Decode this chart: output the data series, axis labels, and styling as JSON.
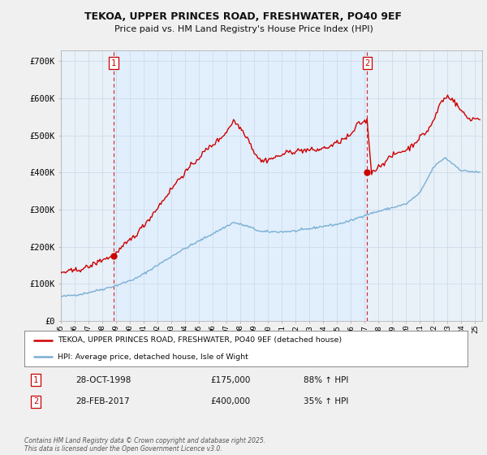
{
  "title_line1": "TEKOA, UPPER PRINCES ROAD, FRESHWATER, PO40 9EF",
  "title_line2": "Price paid vs. HM Land Registry's House Price Index (HPI)",
  "xlim_start": 1995.0,
  "xlim_end": 2025.5,
  "ylim": [
    0,
    730000
  ],
  "yticks": [
    0,
    100000,
    200000,
    300000,
    400000,
    500000,
    600000,
    700000
  ],
  "ytick_labels": [
    "£0",
    "£100K",
    "£200K",
    "£300K",
    "£400K",
    "£500K",
    "£600K",
    "£700K"
  ],
  "red_color": "#cc0000",
  "blue_color": "#7aafd4",
  "vline_color": "#cc0000",
  "shading_color": "#ddeeff",
  "marker1_x": 1998.83,
  "marker1_y": 175000,
  "marker2_x": 2017.17,
  "marker2_y": 400000,
  "legend_label_red": "TEKOA, UPPER PRINCES ROAD, FRESHWATER, PO40 9EF (detached house)",
  "legend_label_blue": "HPI: Average price, detached house, Isle of Wight",
  "annotation1_num": "1",
  "annotation1_date": "28-OCT-1998",
  "annotation1_price": "£175,000",
  "annotation1_hpi": "88% ↑ HPI",
  "annotation2_num": "2",
  "annotation2_date": "28-FEB-2017",
  "annotation2_price": "£400,000",
  "annotation2_hpi": "35% ↑ HPI",
  "footer": "Contains HM Land Registry data © Crown copyright and database right 2025.\nThis data is licensed under the Open Government Licence v3.0.",
  "background_color": "#f0f0f0",
  "plot_bg_color": "#e8f0f8",
  "grid_color": "#c8d8e8",
  "xtick_labels": [
    "95",
    "96",
    "97",
    "98",
    "99",
    "00",
    "01",
    "02",
    "03",
    "04",
    "05",
    "06",
    "07",
    "08",
    "09",
    "10",
    "11",
    "12",
    "13",
    "14",
    "15",
    "16",
    "17",
    "18",
    "19",
    "20",
    "21",
    "22",
    "23",
    "24",
    "25"
  ]
}
